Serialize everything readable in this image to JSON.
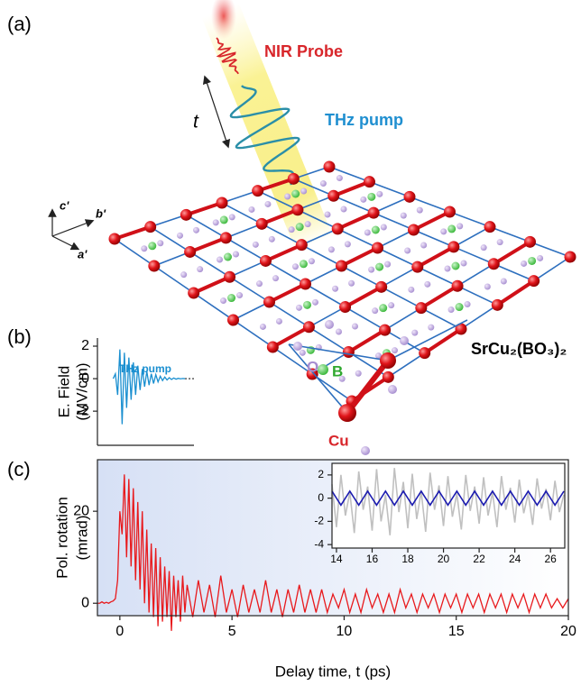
{
  "panel_a": {
    "label": "(a)",
    "probe": "NIR Probe",
    "pump": "THz pump",
    "delay": "t",
    "axes": [
      "c'",
      "b'",
      "a'"
    ],
    "atoms": [
      "O",
      "B",
      "Cu"
    ],
    "compound": "SrCu₂(BO₃)₂"
  },
  "chart_data": [
    {
      "type": "line",
      "panel_label": "(b)",
      "ylabel": [
        "E. Field",
        "(MV/cm)"
      ],
      "annotation": "THz pump",
      "x": [
        -0.3,
        -0.2,
        -0.1,
        0,
        0.1,
        0.2,
        0.3,
        0.4,
        0.5,
        0.6,
        0.7,
        0.8,
        0.9,
        1.0,
        1.1,
        1.2,
        1.3,
        1.4,
        1.5,
        1.6,
        1.7,
        1.8,
        1.9,
        2.0,
        2.1,
        2.2,
        2.3,
        2.4,
        2.5,
        2.6,
        2.7,
        2.8,
        2.9
      ],
      "values": [
        0,
        0.3,
        -1,
        1.8,
        -2.8,
        1.6,
        -1.8,
        1.3,
        -1.3,
        1,
        -1,
        0.8,
        -0.7,
        0.6,
        -0.5,
        0.45,
        -0.4,
        0.3,
        -0.3,
        0.25,
        -0.2,
        0.15,
        -0.12,
        0.1,
        -0.08,
        0.06,
        -0.05,
        0.04,
        -0.03,
        0.02,
        -0.01,
        0.01,
        0
      ],
      "color": "#1a8fd0",
      "xlim": [
        -1,
        3.3
      ],
      "ylim": [
        -4.1,
        2.5
      ],
      "yticks": [
        -2,
        0,
        2
      ],
      "zero_line": true
    },
    {
      "type": "line",
      "panel_label": "(c)",
      "ylabel": [
        "Pol. rotation",
        "(mrad)"
      ],
      "xlabel": "Delay time, t (ps)",
      "x": [
        -1,
        -0.9,
        -0.8,
        -0.7,
        -0.6,
        -0.5,
        -0.4,
        -0.3,
        -0.2,
        -0.1,
        0,
        0.1,
        0.2,
        0.3,
        0.4,
        0.5,
        0.6,
        0.7,
        0.8,
        0.9,
        1.0,
        1.1,
        1.2,
        1.3,
        1.4,
        1.5,
        1.6,
        1.7,
        1.8,
        1.9,
        2.0,
        2.1,
        2.2,
        2.3,
        2.4,
        2.5,
        2.6,
        2.7,
        2.8,
        2.9,
        3.0,
        3.25,
        3.5,
        3.75,
        4,
        4.25,
        4.5,
        4.75,
        5,
        5.25,
        5.5,
        5.75,
        6,
        6.25,
        6.5,
        6.75,
        7,
        7.25,
        7.5,
        7.75,
        8,
        8.25,
        8.5,
        8.75,
        9,
        9.25,
        9.5,
        9.75,
        10,
        10.25,
        10.5,
        10.75,
        11,
        11.25,
        11.5,
        11.75,
        12,
        12.25,
        12.5,
        12.75,
        13,
        13.25,
        13.5,
        13.75,
        14,
        14.25,
        14.5,
        14.75,
        15,
        15.25,
        15.5,
        15.75,
        16,
        16.25,
        16.5,
        16.75,
        17,
        17.25,
        17.5,
        17.75,
        18,
        18.25,
        18.5,
        18.75,
        19,
        19.25,
        19.5,
        19.75,
        20
      ],
      "values": [
        0,
        0,
        0.3,
        0,
        0.2,
        0,
        0.3,
        0.5,
        1,
        5,
        20,
        15,
        28,
        10,
        27,
        8,
        25,
        5,
        22,
        3,
        20,
        0,
        16,
        -2,
        13,
        -3,
        12,
        -5,
        10,
        -4,
        8,
        -3,
        7,
        -6,
        6,
        -3,
        5,
        -4,
        6,
        -2,
        4,
        -3,
        5,
        -2,
        4,
        -3,
        6,
        -2,
        3,
        -3,
        4,
        -2,
        3,
        -2,
        5,
        -2,
        3,
        -3,
        3,
        -2,
        4,
        -2,
        3,
        -2,
        3,
        -2,
        2,
        -1,
        3,
        -2,
        2,
        -2,
        3,
        -1,
        2,
        -2,
        2,
        -2,
        3,
        -1,
        2,
        -2,
        2,
        -1,
        2,
        -2,
        2,
        -1,
        2,
        -2,
        2,
        -1,
        2,
        -2,
        2,
        -1,
        2,
        -2,
        2,
        -1,
        2,
        -2,
        2,
        -1,
        2,
        -1,
        1,
        -1,
        1
      ],
      "color": "#e8191c",
      "xlim": [
        -1,
        20
      ],
      "ylim": [
        -2.7,
        31.2
      ],
      "xticks": [
        0,
        5,
        10,
        15,
        20
      ],
      "yticks": [
        0,
        20
      ]
    },
    {
      "type": "line",
      "x": [
        13.75,
        14,
        14.25,
        14.5,
        14.75,
        15,
        15.25,
        15.5,
        15.75,
        16,
        16.25,
        16.5,
        16.75,
        17,
        17.25,
        17.5,
        17.75,
        18,
        18.25,
        18.5,
        18.75,
        19,
        19.25,
        19.5,
        19.75,
        20,
        20.25,
        20.5,
        20.75,
        21,
        21.25,
        21.5,
        21.75,
        22,
        22.25,
        22.5,
        22.75,
        23,
        23.25,
        23.5,
        23.75,
        24,
        24.25,
        24.5,
        24.75,
        25,
        25.25,
        25.5,
        25.75,
        26,
        26.25,
        26.5,
        26.75
      ],
      "series": [
        {
          "color": "#c0c0c0",
          "values": [
            1.2,
            -2.5,
            2.0,
            -1.5,
            0.5,
            -3.0,
            2.3,
            -1.0,
            1.0,
            -2.8,
            2.5,
            -2.0,
            0.3,
            -3.2,
            2.6,
            -1.2,
            1.4,
            -2.6,
            2.1,
            -1.8,
            0.6,
            -2.9,
            2.2,
            -1.0,
            1.1,
            -2.4,
            1.9,
            -1.6,
            0.4,
            -2.7,
            2.0,
            -1.1,
            1.0,
            -2.2,
            1.8,
            -1.5,
            0.5,
            -2.5,
            1.9,
            -1.0,
            0.9,
            -2.1,
            1.6,
            -1.3,
            0.4,
            -2.3,
            1.7,
            -0.9,
            0.8,
            -1.9,
            1.5,
            -1.2,
            0.3
          ]
        },
        {
          "color": "#1b1bb0",
          "values": [
            0.6,
            0,
            -0.6,
            0,
            0.6,
            0,
            -0.6,
            0,
            0.6,
            0,
            -0.6,
            0,
            0.6,
            0,
            -0.6,
            0,
            0.6,
            0,
            -0.6,
            0,
            0.6,
            0,
            -0.6,
            0,
            0.6,
            0,
            -0.6,
            0,
            0.6,
            0,
            -0.6,
            0,
            0.6,
            0,
            -0.6,
            0,
            0.6,
            0,
            -0.6,
            0,
            0.6,
            0,
            -0.6,
            0,
            0.6,
            0,
            -0.6,
            0,
            0.6,
            0,
            -0.6,
            0,
            0.6
          ]
        }
      ],
      "xlim": [
        13.75,
        26.8
      ],
      "ylim": [
        -4.3,
        3.0
      ],
      "xticks": [
        14,
        16,
        18,
        20,
        22,
        24,
        26
      ],
      "yticks": [
        -4,
        -2,
        0,
        2
      ]
    }
  ]
}
